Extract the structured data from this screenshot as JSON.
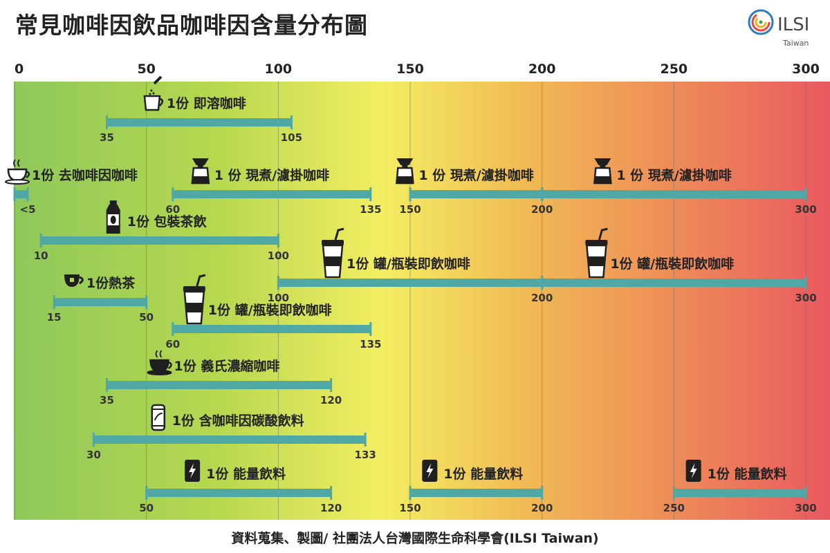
{
  "title": "常見咖啡因飲品咖啡因含量分布圖",
  "logo": {
    "text": "ILSI",
    "subtitle": "Taiwan"
  },
  "footer": "資料蒐集、製圖/ 社團法人台灣國際生命科學會(ILSI Taiwan)",
  "colors": {
    "bar": "#4fa8a3",
    "gradient": [
      "#8ec85b",
      "#b7d84f",
      "#f3ee62",
      "#f1bc55",
      "#ee8e58",
      "#e95960"
    ]
  },
  "chart_data": {
    "type": "bar",
    "orientation": "horizontal-range",
    "xlim": [
      0,
      300
    ],
    "ticks": [
      0,
      50,
      100,
      150,
      200,
      250,
      300
    ],
    "grid": true,
    "ranges": [
      {
        "row": 0,
        "label": "1份 即溶咖啡",
        "icon": "instant-coffee-icon",
        "min": 35,
        "max": 105,
        "min_label": "35",
        "max_label": "105"
      },
      {
        "row": 1,
        "label": "1份 去咖啡因咖啡",
        "icon": "coffee-cup-icon",
        "min": 0,
        "max": 5,
        "min_label": "",
        "max_label": "<5"
      },
      {
        "row": 1,
        "label": "1 份 現煮/濾掛咖啡",
        "icon": "pour-over-icon",
        "min": 60,
        "max": 135,
        "min_label": "60",
        "max_label": "135"
      },
      {
        "row": 1,
        "label": "1 份 現煮/濾掛咖啡",
        "icon": "pour-over-icon",
        "min": 150,
        "max": 200,
        "min_label": "150",
        "max_label": "200"
      },
      {
        "row": 1,
        "label": "1 份 現煮/濾掛咖啡",
        "icon": "pour-over-icon",
        "min": 200,
        "max": 300,
        "min_label": "",
        "max_label": "300"
      },
      {
        "row": 2,
        "label": "1份 包裝茶飲",
        "icon": "tea-bottle-icon",
        "min": 10,
        "max": 100,
        "min_label": "10",
        "max_label": "100"
      },
      {
        "row": 3,
        "label": "1份  罐/瓶裝即飲咖啡",
        "icon": "takeaway-cup-icon",
        "min": 100,
        "max": 200,
        "min_label": "100",
        "max_label": "200"
      },
      {
        "row": 3,
        "label": "1份  罐/瓶裝即飲咖啡",
        "icon": "takeaway-cup-icon",
        "min": 200,
        "max": 300,
        "min_label": "",
        "max_label": "300"
      },
      {
        "row": 4,
        "label": "1份熱茶",
        "icon": "tea-cup-icon",
        "min": 15,
        "max": 50,
        "min_label": "15",
        "max_label": "50"
      },
      {
        "row": 5,
        "label": "1份  罐/瓶裝即飲咖啡",
        "icon": "takeaway-cup-icon",
        "min": 60,
        "max": 135,
        "min_label": "60",
        "max_label": "135"
      },
      {
        "row": 6,
        "label": "1份 義氏濃縮咖啡",
        "icon": "espresso-icon",
        "min": 35,
        "max": 120,
        "min_label": "35",
        "max_label": "120"
      },
      {
        "row": 7,
        "label": "1份 含咖啡因碳酸飲料",
        "icon": "cola-can-icon",
        "min": 30,
        "max": 133,
        "min_label": "30",
        "max_label": "133"
      },
      {
        "row": 8,
        "label": "1份 能量飲料",
        "icon": "energy-drink-icon",
        "min": 50,
        "max": 120,
        "min_label": "50",
        "max_label": "120"
      },
      {
        "row": 8,
        "label": "1份 能量飲料",
        "icon": "energy-drink-icon",
        "min": 150,
        "max": 200,
        "min_label": "150",
        "max_label": "200"
      },
      {
        "row": 8,
        "label": "1份 能量飲料",
        "icon": "energy-drink-icon",
        "min": 250,
        "max": 300,
        "min_label": "250",
        "max_label": "300"
      }
    ]
  }
}
